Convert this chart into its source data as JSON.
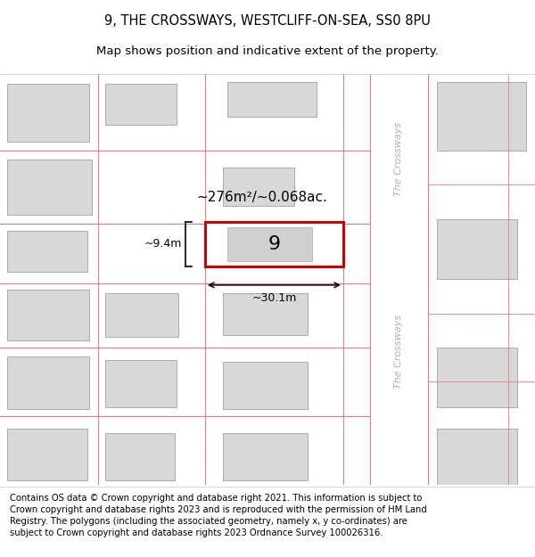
{
  "title_line1": "9, THE CROSSWAYS, WESTCLIFF-ON-SEA, SS0 8PU",
  "title_line2": "Map shows position and indicative extent of the property.",
  "footer_text": "Contains OS data © Crown copyright and database right 2021. This information is subject to Crown copyright and database rights 2023 and is reproduced with the permission of HM Land Registry. The polygons (including the associated geometry, namely x, y co-ordinates) are subject to Crown copyright and database rights 2023 Ordnance Survey 100026316.",
  "plot_line_color": "#e08080",
  "building_fill": "#d8d8d8",
  "building_edge": "#aaaaaa",
  "highlight_rect_color": "#cc0000",
  "street_label_color": "#b0b0b0",
  "area_label": "~276m²/~0.068ac.",
  "width_label": "~30.1m",
  "height_label": "~9.4m",
  "plot_number": "9",
  "title_fontsize": 10.5,
  "subtitle_fontsize": 9.5,
  "footer_fontsize": 7.2
}
